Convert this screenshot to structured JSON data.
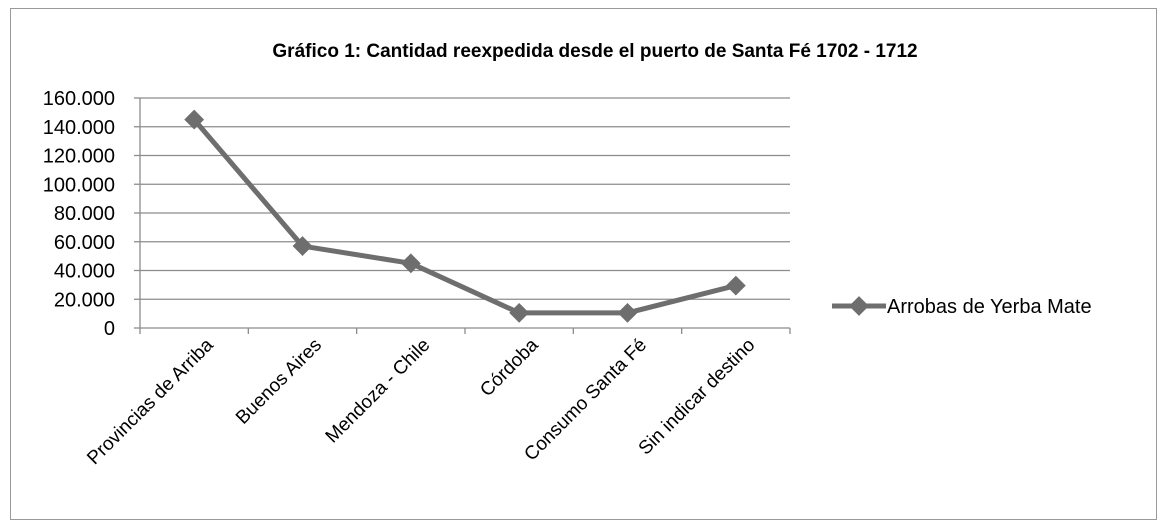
{
  "chart_data": {
    "type": "line",
    "title": "Gráfico 1: Cantidad reexpedida desde el puerto de Santa Fé 1702 - 1712",
    "xlabel": "",
    "ylabel": "",
    "categories": [
      "Provincias de Arriba",
      "Buenos Aires",
      "Mendoza - Chile",
      "Córdoba",
      "Consumo Santa Fé",
      "Sin indicar destino"
    ],
    "series": [
      {
        "name": "Arrobas de Yerba Mate",
        "values": [
          145000,
          57000,
          45000,
          10500,
          10500,
          29500
        ]
      }
    ],
    "ylim": [
      0,
      160000
    ],
    "yticks": [
      "0",
      "20.000",
      "40.000",
      "60.000",
      "80.000",
      "100.000",
      "120.000",
      "140.000",
      "160.000"
    ],
    "ytick_values": [
      0,
      20000,
      40000,
      60000,
      80000,
      100000,
      120000,
      140000,
      160000
    ],
    "grid": "horizontal",
    "legend_position": "right",
    "line_color": "#6e6e6e",
    "grid_color": "#8c8c8c"
  }
}
